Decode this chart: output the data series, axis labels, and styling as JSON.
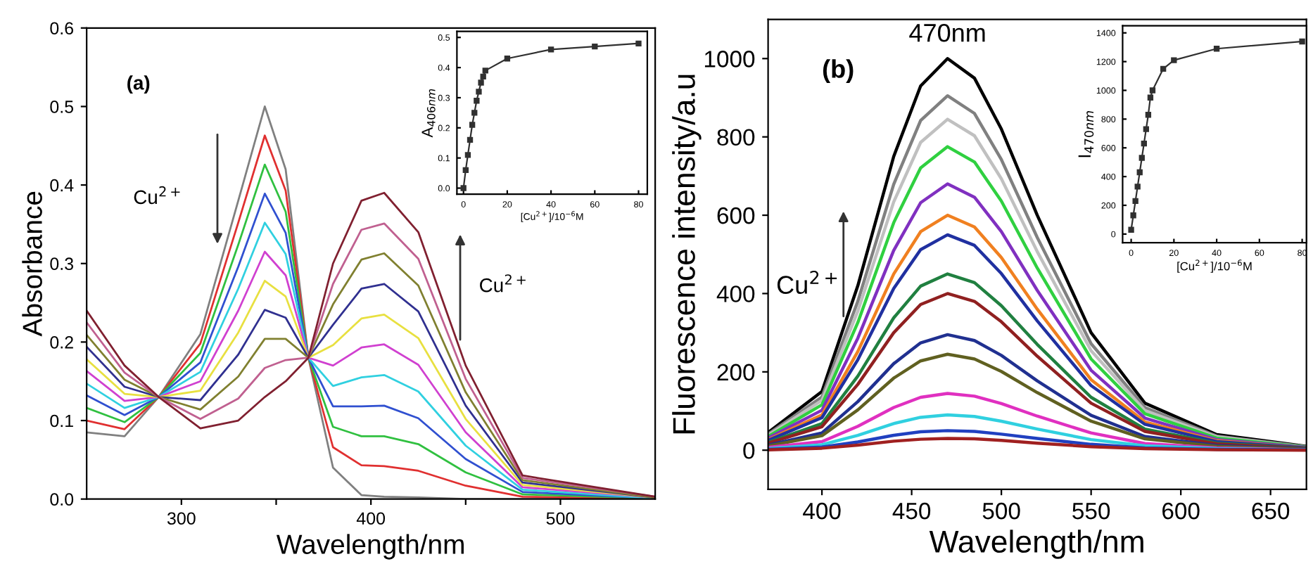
{
  "chart_data": [
    {
      "type": "line",
      "xlabel": "Wavelength/nm",
      "ylabel": "Absorbance",
      "annotations": [
        "(a)",
        {
          "text": "Cu$^{2+}$",
          "x": 319,
          "y": 0.32
        },
        "Cu$^{2+}$"
      ],
      "x": [
        250,
        270,
        288,
        310,
        330,
        344,
        355,
        367,
        380,
        395,
        407,
        425,
        450,
        480,
        550
      ],
      "xlim": [
        250,
        550
      ],
      "xticks": [
        300,
        {
          "value": 350,
          "label": null
        },
        400,
        {
          "value": 450,
          "label": null
        },
        500
      ],
      "ylim": [
        0,
        0.6
      ],
      "yticks": [
        {
          "value": 0,
          "label": "0.0"
        },
        0.1,
        0.2,
        0.3,
        0.4,
        0.5,
        0.6
      ],
      "grid": false,
      "marker": "none",
      "series": [
        {
          "color": "#808080",
          "values": [
            0.085,
            0.08,
            0.13,
            0.21,
            0.38,
            0.5,
            0.42,
            0.18,
            0.04,
            0.005,
            0.003,
            0.002,
            0.0,
            0.0,
            0.0
          ]
        },
        {
          "color": "#e03030",
          "values": [
            0.1,
            0.089,
            0.13,
            0.198,
            0.352,
            0.463,
            0.393,
            0.18,
            0.066,
            0.043,
            0.042,
            0.036,
            0.017,
            0.003,
            0.0
          ]
        },
        {
          "color": "#30c040",
          "values": [
            0.116,
            0.098,
            0.13,
            0.186,
            0.324,
            0.426,
            0.366,
            0.18,
            0.092,
            0.08,
            0.08,
            0.07,
            0.034,
            0.006,
            0.001
          ]
        },
        {
          "color": "#3050d0",
          "values": [
            0.132,
            0.107,
            0.13,
            0.174,
            0.296,
            0.389,
            0.339,
            0.18,
            0.118,
            0.118,
            0.119,
            0.103,
            0.051,
            0.009,
            0.001
          ]
        },
        {
          "color": "#30d0e0",
          "values": [
            0.147,
            0.116,
            0.13,
            0.162,
            0.268,
            0.352,
            0.312,
            0.18,
            0.144,
            0.155,
            0.158,
            0.137,
            0.068,
            0.012,
            0.001
          ]
        },
        {
          "color": "#d040d0",
          "values": [
            0.163,
            0.125,
            0.13,
            0.15,
            0.24,
            0.315,
            0.285,
            0.18,
            0.17,
            0.193,
            0.197,
            0.171,
            0.085,
            0.015,
            0.002
          ]
        },
        {
          "color": "#e8e040",
          "values": [
            0.178,
            0.134,
            0.13,
            0.138,
            0.212,
            0.278,
            0.258,
            0.18,
            0.196,
            0.23,
            0.235,
            0.205,
            0.102,
            0.018,
            0.002
          ]
        },
        {
          "color": "#303090",
          "values": [
            0.194,
            0.143,
            0.13,
            0.126,
            0.184,
            0.241,
            0.231,
            0.18,
            0.222,
            0.268,
            0.274,
            0.239,
            0.119,
            0.021,
            0.002
          ]
        },
        {
          "color": "#808030",
          "values": [
            0.209,
            0.152,
            0.13,
            0.114,
            0.156,
            0.204,
            0.204,
            0.18,
            0.248,
            0.305,
            0.313,
            0.272,
            0.136,
            0.024,
            0.002
          ]
        },
        {
          "color": "#c06090",
          "values": [
            0.225,
            0.161,
            0.13,
            0.102,
            0.128,
            0.167,
            0.177,
            0.18,
            0.274,
            0.343,
            0.351,
            0.306,
            0.153,
            0.027,
            0.003
          ]
        },
        {
          "color": "#802030",
          "values": [
            0.24,
            0.17,
            0.13,
            0.09,
            0.1,
            0.13,
            0.15,
            0.18,
            0.3,
            0.38,
            0.39,
            0.34,
            0.17,
            0.03,
            0.003
          ]
        }
      ]
    },
    {
      "type": "line",
      "xlabel": "[Cu$^{2+}$]/10$^{−6}$M",
      "ylabel": "A$_{406nm}$",
      "x": [
        0,
        1,
        2,
        3,
        4,
        5,
        6,
        7,
        8,
        9,
        10,
        20,
        40,
        60,
        80
      ],
      "xlim": [
        -3,
        84
      ],
      "xticks": [
        0,
        20,
        40,
        60,
        80
      ],
      "ylim": [
        -0.02,
        0.52
      ],
      "yticks": [
        {
          "value": 0,
          "label": "0.0"
        },
        0.1,
        0.2,
        0.3,
        0.4,
        0.5
      ],
      "grid": false,
      "marker": "square",
      "series": [
        {
          "color": "#303030",
          "values": [
            0.0,
            0.06,
            0.11,
            0.16,
            0.21,
            0.25,
            0.29,
            0.32,
            0.35,
            0.37,
            0.39,
            0.43,
            0.46,
            0.47,
            0.48
          ]
        }
      ]
    },
    {
      "type": "line",
      "xlabel": "Wavelength/nm",
      "ylabel": "Fluorescence intensity/a.u",
      "annotations": [
        "(b)",
        "Cu$^{2+}$",
        {
          "text": "470nm",
          "x": 470,
          "y": 1000
        }
      ],
      "x": [
        370,
        400,
        420,
        440,
        455,
        470,
        485,
        500,
        520,
        550,
        580,
        620,
        670
      ],
      "xlim": [
        370,
        670
      ],
      "xticks": [
        400,
        450,
        500,
        550,
        600,
        650
      ],
      "ylim": [
        -100,
        1100
      ],
      "yticks": [
        0,
        200,
        400,
        600,
        800,
        1000
      ],
      "grid": false,
      "marker": "none",
      "series": [
        {
          "color": "#000000",
          "values": [
            45,
            150,
            420,
            750,
            930,
            1000,
            950,
            820,
            600,
            300,
            120,
            40,
            10
          ]
        },
        {
          "color": "#808080",
          "values": [
            41,
            136,
            380,
            679,
            842,
            905,
            860,
            742,
            543,
            272,
            109,
            36,
            9
          ]
        },
        {
          "color": "#c0c0c0",
          "values": [
            38,
            127,
            355,
            634,
            786,
            845,
            803,
            693,
            507,
            254,
            101,
            34,
            8
          ]
        },
        {
          "color": "#30d040",
          "values": [
            35,
            116,
            326,
            581,
            721,
            775,
            736,
            636,
            465,
            233,
            93,
            31,
            8
          ]
        },
        {
          "color": "#8030c0",
          "values": [
            31,
            102,
            286,
            510,
            632,
            680,
            646,
            558,
            408,
            204,
            82,
            27,
            7
          ]
        },
        {
          "color": "#f08020",
          "values": [
            27,
            90,
            252,
            450,
            558,
            600,
            570,
            492,
            360,
            180,
            72,
            24,
            6
          ]
        },
        {
          "color": "#2030a0",
          "values": [
            25,
            83,
            231,
            413,
            512,
            550,
            523,
            451,
            330,
            165,
            66,
            22,
            6
          ]
        },
        {
          "color": "#208040",
          "values": [
            20,
            68,
            189,
            338,
            419,
            450,
            428,
            369,
            270,
            135,
            54,
            18,
            5
          ]
        },
        {
          "color": "#902020",
          "values": [
            18,
            60,
            168,
            300,
            372,
            400,
            380,
            328,
            240,
            120,
            48,
            16,
            4
          ]
        },
        {
          "color": "#203090",
          "values": [
            13,
            44,
            124,
            221,
            274,
            295,
            280,
            242,
            177,
            89,
            35,
            12,
            3
          ]
        },
        {
          "color": "#606020",
          "values": [
            11,
            37,
            103,
            184,
            228,
            245,
            233,
            201,
            147,
            74,
            29,
            10,
            2
          ]
        },
        {
          "color": "#e030c0",
          "values": [
            7,
            22,
            61,
            109,
            135,
            145,
            138,
            119,
            87,
            44,
            17,
            6,
            1
          ]
        },
        {
          "color": "#30d0e0",
          "values": [
            4,
            14,
            38,
            68,
            84,
            90,
            86,
            74,
            54,
            27,
            11,
            4,
            1
          ]
        },
        {
          "color": "#2040c0",
          "values": [
            2,
            8,
            21,
            38,
            47,
            50,
            48,
            41,
            30,
            15,
            6,
            2,
            1
          ]
        },
        {
          "color": "#a02020",
          "values": [
            1,
            5,
            13,
            23,
            28,
            30,
            29,
            25,
            18,
            9,
            4,
            1,
            0
          ]
        }
      ]
    },
    {
      "type": "line",
      "xlabel": "[Cu$^{2+}$]/10$^{−6}$M",
      "ylabel": "I$_{470nm}$",
      "x": [
        0,
        1,
        2,
        3,
        4,
        5,
        6,
        7,
        8,
        9,
        10,
        15,
        20,
        40,
        80
      ],
      "xlim": [
        -4,
        82
      ],
      "xticks": [
        0,
        20,
        40,
        60,
        80
      ],
      "ylim": [
        -60,
        1450
      ],
      "yticks": [
        0,
        200,
        400,
        600,
        800,
        1000,
        1200,
        1400
      ],
      "grid": false,
      "marker": "square",
      "series": [
        {
          "color": "#303030",
          "values": [
            30,
            130,
            230,
            330,
            430,
            530,
            630,
            730,
            830,
            950,
            1000,
            1150,
            1210,
            1290,
            1340
          ]
        }
      ]
    }
  ]
}
